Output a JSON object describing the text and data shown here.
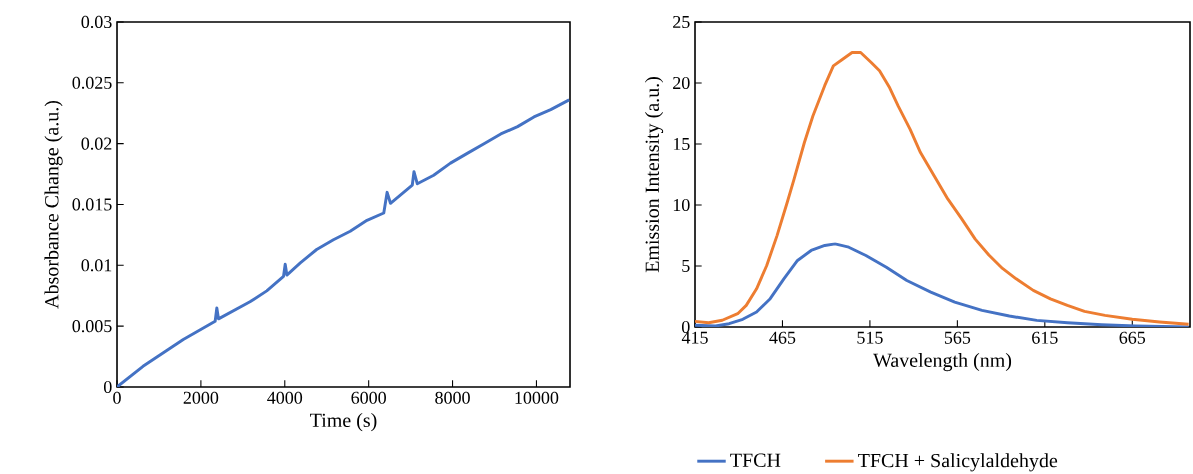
{
  "chart_data": [
    {
      "type": "line",
      "xlabel": "Time (s)",
      "ylabel": "Absorbance Change (a.u.)",
      "xlim": [
        0,
        10800
      ],
      "xticks": [
        0,
        2000,
        4000,
        6000,
        8000,
        10000
      ],
      "ylim": [
        0,
        0.03
      ],
      "yticks": [
        0,
        0.005,
        0.01,
        0.015,
        0.02,
        0.025,
        0.03
      ],
      "series": [
        {
          "color": "#4472c4",
          "x": [
            0,
            620,
            1580,
            2340,
            2380,
            2420,
            3170,
            3570,
            3970,
            4010,
            4050,
            4370,
            4760,
            5160,
            5560,
            5960,
            6360,
            6440,
            6520,
            7040,
            7080,
            7160,
            7550,
            7950,
            8350,
            8750,
            9150,
            9550,
            9940,
            10340,
            10780
          ],
          "values": [
            0,
            0.0017,
            0.0039,
            0.0054,
            0.0065,
            0.0056,
            0.007,
            0.0079,
            0.0091,
            0.0101,
            0.0092,
            0.0102,
            0.0113,
            0.0121,
            0.0128,
            0.0137,
            0.0143,
            0.016,
            0.0151,
            0.0166,
            0.0177,
            0.0167,
            0.0174,
            0.0184,
            0.0192,
            0.02,
            0.0208,
            0.0214,
            0.0222,
            0.0228,
            0.0236
          ]
        }
      ]
    },
    {
      "type": "line",
      "xlabel": "Wavelength (nm)",
      "ylabel": "Emission Intensity (a.u.)",
      "xlim": [
        415,
        698
      ],
      "xticks": [
        415,
        465,
        515,
        565,
        615,
        665
      ],
      "ylim": [
        0,
        25
      ],
      "yticks": [
        0,
        5,
        10,
        15,
        20,
        25
      ],
      "legend": "bottom",
      "series": [
        {
          "name": "TFCH",
          "color": "#4472c4",
          "x": [
            415,
            426.7,
            434.5,
            442.3,
            450.2,
            458,
            465.8,
            473.6,
            481.4,
            489.2,
            495.1,
            502.9,
            512.7,
            524.4,
            536.1,
            549.8,
            563.5,
            579.1,
            594.7,
            610.4,
            628,
            647.5,
            667,
            697.2
          ],
          "values": [
            0.14,
            0.08,
            0.27,
            0.63,
            1.23,
            2.32,
            3.95,
            5.45,
            6.27,
            6.68,
            6.81,
            6.54,
            5.86,
            4.9,
            3.81,
            2.86,
            2.04,
            1.36,
            0.9,
            0.54,
            0.35,
            0.19,
            0.08,
            0.0
          ]
        },
        {
          "name": "TFCH + Salicylaldehyde",
          "color": "#ed7d31",
          "x": [
            415,
            422.8,
            430.6,
            439.4,
            444.3,
            450.2,
            456,
            461.9,
            467.7,
            471.6,
            477.5,
            482.4,
            489.2,
            494.1,
            499,
            504.8,
            509.7,
            515.6,
            520.5,
            526.3,
            531.2,
            538,
            543.9,
            551.7,
            559.5,
            567.3,
            575.2,
            583,
            590.8,
            598.6,
            608.4,
            618.2,
            627.9,
            637.7,
            649.4,
            665,
            680.6,
            697.2
          ],
          "values": [
            0.46,
            0.35,
            0.55,
            1.09,
            1.77,
            3.13,
            5.04,
            7.49,
            10.2,
            12.1,
            15.1,
            17.3,
            19.8,
            21.4,
            21.9,
            22.5,
            22.5,
            21.7,
            21.0,
            19.6,
            18.1,
            16.2,
            14.3,
            12.4,
            10.5,
            8.9,
            7.2,
            5.9,
            4.8,
            3.95,
            3.0,
            2.3,
            1.77,
            1.28,
            0.95,
            0.63,
            0.41,
            0.22
          ]
        }
      ]
    }
  ]
}
